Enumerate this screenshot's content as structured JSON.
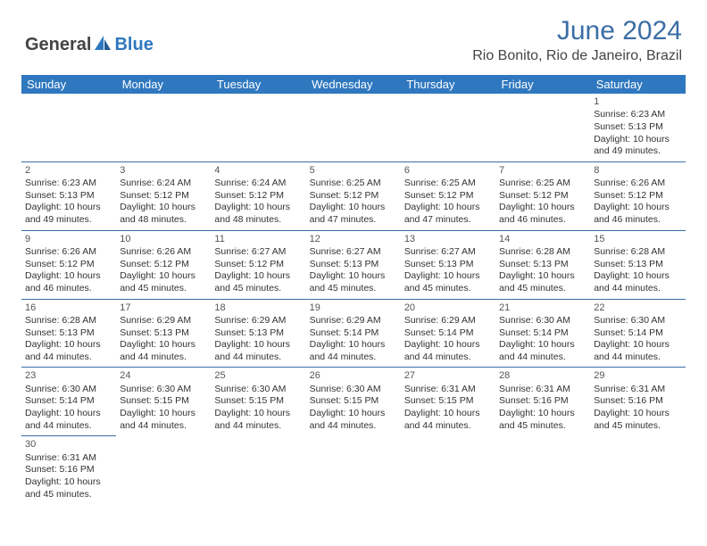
{
  "logo": {
    "general": "General",
    "blue": "Blue"
  },
  "title": "June 2024",
  "location": "Rio Bonito, Rio de Janeiro, Brazil",
  "day_headers": [
    "Sunday",
    "Monday",
    "Tuesday",
    "Wednesday",
    "Thursday",
    "Friday",
    "Saturday"
  ],
  "colors": {
    "header_bg": "#2f78bf",
    "header_text": "#ffffff",
    "title_color": "#3b6ea5",
    "border_color": "#3b6ea5",
    "body_text": "#333333"
  },
  "weeks": [
    [
      null,
      null,
      null,
      null,
      null,
      null,
      {
        "n": "1",
        "sr": "Sunrise: 6:23 AM",
        "ss": "Sunset: 5:13 PM",
        "d1": "Daylight: 10 hours",
        "d2": "and 49 minutes."
      }
    ],
    [
      {
        "n": "2",
        "sr": "Sunrise: 6:23 AM",
        "ss": "Sunset: 5:13 PM",
        "d1": "Daylight: 10 hours",
        "d2": "and 49 minutes."
      },
      {
        "n": "3",
        "sr": "Sunrise: 6:24 AM",
        "ss": "Sunset: 5:12 PM",
        "d1": "Daylight: 10 hours",
        "d2": "and 48 minutes."
      },
      {
        "n": "4",
        "sr": "Sunrise: 6:24 AM",
        "ss": "Sunset: 5:12 PM",
        "d1": "Daylight: 10 hours",
        "d2": "and 48 minutes."
      },
      {
        "n": "5",
        "sr": "Sunrise: 6:25 AM",
        "ss": "Sunset: 5:12 PM",
        "d1": "Daylight: 10 hours",
        "d2": "and 47 minutes."
      },
      {
        "n": "6",
        "sr": "Sunrise: 6:25 AM",
        "ss": "Sunset: 5:12 PM",
        "d1": "Daylight: 10 hours",
        "d2": "and 47 minutes."
      },
      {
        "n": "7",
        "sr": "Sunrise: 6:25 AM",
        "ss": "Sunset: 5:12 PM",
        "d1": "Daylight: 10 hours",
        "d2": "and 46 minutes."
      },
      {
        "n": "8",
        "sr": "Sunrise: 6:26 AM",
        "ss": "Sunset: 5:12 PM",
        "d1": "Daylight: 10 hours",
        "d2": "and 46 minutes."
      }
    ],
    [
      {
        "n": "9",
        "sr": "Sunrise: 6:26 AM",
        "ss": "Sunset: 5:12 PM",
        "d1": "Daylight: 10 hours",
        "d2": "and 46 minutes."
      },
      {
        "n": "10",
        "sr": "Sunrise: 6:26 AM",
        "ss": "Sunset: 5:12 PM",
        "d1": "Daylight: 10 hours",
        "d2": "and 45 minutes."
      },
      {
        "n": "11",
        "sr": "Sunrise: 6:27 AM",
        "ss": "Sunset: 5:12 PM",
        "d1": "Daylight: 10 hours",
        "d2": "and 45 minutes."
      },
      {
        "n": "12",
        "sr": "Sunrise: 6:27 AM",
        "ss": "Sunset: 5:13 PM",
        "d1": "Daylight: 10 hours",
        "d2": "and 45 minutes."
      },
      {
        "n": "13",
        "sr": "Sunrise: 6:27 AM",
        "ss": "Sunset: 5:13 PM",
        "d1": "Daylight: 10 hours",
        "d2": "and 45 minutes."
      },
      {
        "n": "14",
        "sr": "Sunrise: 6:28 AM",
        "ss": "Sunset: 5:13 PM",
        "d1": "Daylight: 10 hours",
        "d2": "and 45 minutes."
      },
      {
        "n": "15",
        "sr": "Sunrise: 6:28 AM",
        "ss": "Sunset: 5:13 PM",
        "d1": "Daylight: 10 hours",
        "d2": "and 44 minutes."
      }
    ],
    [
      {
        "n": "16",
        "sr": "Sunrise: 6:28 AM",
        "ss": "Sunset: 5:13 PM",
        "d1": "Daylight: 10 hours",
        "d2": "and 44 minutes."
      },
      {
        "n": "17",
        "sr": "Sunrise: 6:29 AM",
        "ss": "Sunset: 5:13 PM",
        "d1": "Daylight: 10 hours",
        "d2": "and 44 minutes."
      },
      {
        "n": "18",
        "sr": "Sunrise: 6:29 AM",
        "ss": "Sunset: 5:13 PM",
        "d1": "Daylight: 10 hours",
        "d2": "and 44 minutes."
      },
      {
        "n": "19",
        "sr": "Sunrise: 6:29 AM",
        "ss": "Sunset: 5:14 PM",
        "d1": "Daylight: 10 hours",
        "d2": "and 44 minutes."
      },
      {
        "n": "20",
        "sr": "Sunrise: 6:29 AM",
        "ss": "Sunset: 5:14 PM",
        "d1": "Daylight: 10 hours",
        "d2": "and 44 minutes."
      },
      {
        "n": "21",
        "sr": "Sunrise: 6:30 AM",
        "ss": "Sunset: 5:14 PM",
        "d1": "Daylight: 10 hours",
        "d2": "and 44 minutes."
      },
      {
        "n": "22",
        "sr": "Sunrise: 6:30 AM",
        "ss": "Sunset: 5:14 PM",
        "d1": "Daylight: 10 hours",
        "d2": "and 44 minutes."
      }
    ],
    [
      {
        "n": "23",
        "sr": "Sunrise: 6:30 AM",
        "ss": "Sunset: 5:14 PM",
        "d1": "Daylight: 10 hours",
        "d2": "and 44 minutes."
      },
      {
        "n": "24",
        "sr": "Sunrise: 6:30 AM",
        "ss": "Sunset: 5:15 PM",
        "d1": "Daylight: 10 hours",
        "d2": "and 44 minutes."
      },
      {
        "n": "25",
        "sr": "Sunrise: 6:30 AM",
        "ss": "Sunset: 5:15 PM",
        "d1": "Daylight: 10 hours",
        "d2": "and 44 minutes."
      },
      {
        "n": "26",
        "sr": "Sunrise: 6:30 AM",
        "ss": "Sunset: 5:15 PM",
        "d1": "Daylight: 10 hours",
        "d2": "and 44 minutes."
      },
      {
        "n": "27",
        "sr": "Sunrise: 6:31 AM",
        "ss": "Sunset: 5:15 PM",
        "d1": "Daylight: 10 hours",
        "d2": "and 44 minutes."
      },
      {
        "n": "28",
        "sr": "Sunrise: 6:31 AM",
        "ss": "Sunset: 5:16 PM",
        "d1": "Daylight: 10 hours",
        "d2": "and 45 minutes."
      },
      {
        "n": "29",
        "sr": "Sunrise: 6:31 AM",
        "ss": "Sunset: 5:16 PM",
        "d1": "Daylight: 10 hours",
        "d2": "and 45 minutes."
      }
    ],
    [
      {
        "n": "30",
        "sr": "Sunrise: 6:31 AM",
        "ss": "Sunset: 5:16 PM",
        "d1": "Daylight: 10 hours",
        "d2": "and 45 minutes."
      },
      null,
      null,
      null,
      null,
      null,
      null
    ]
  ]
}
